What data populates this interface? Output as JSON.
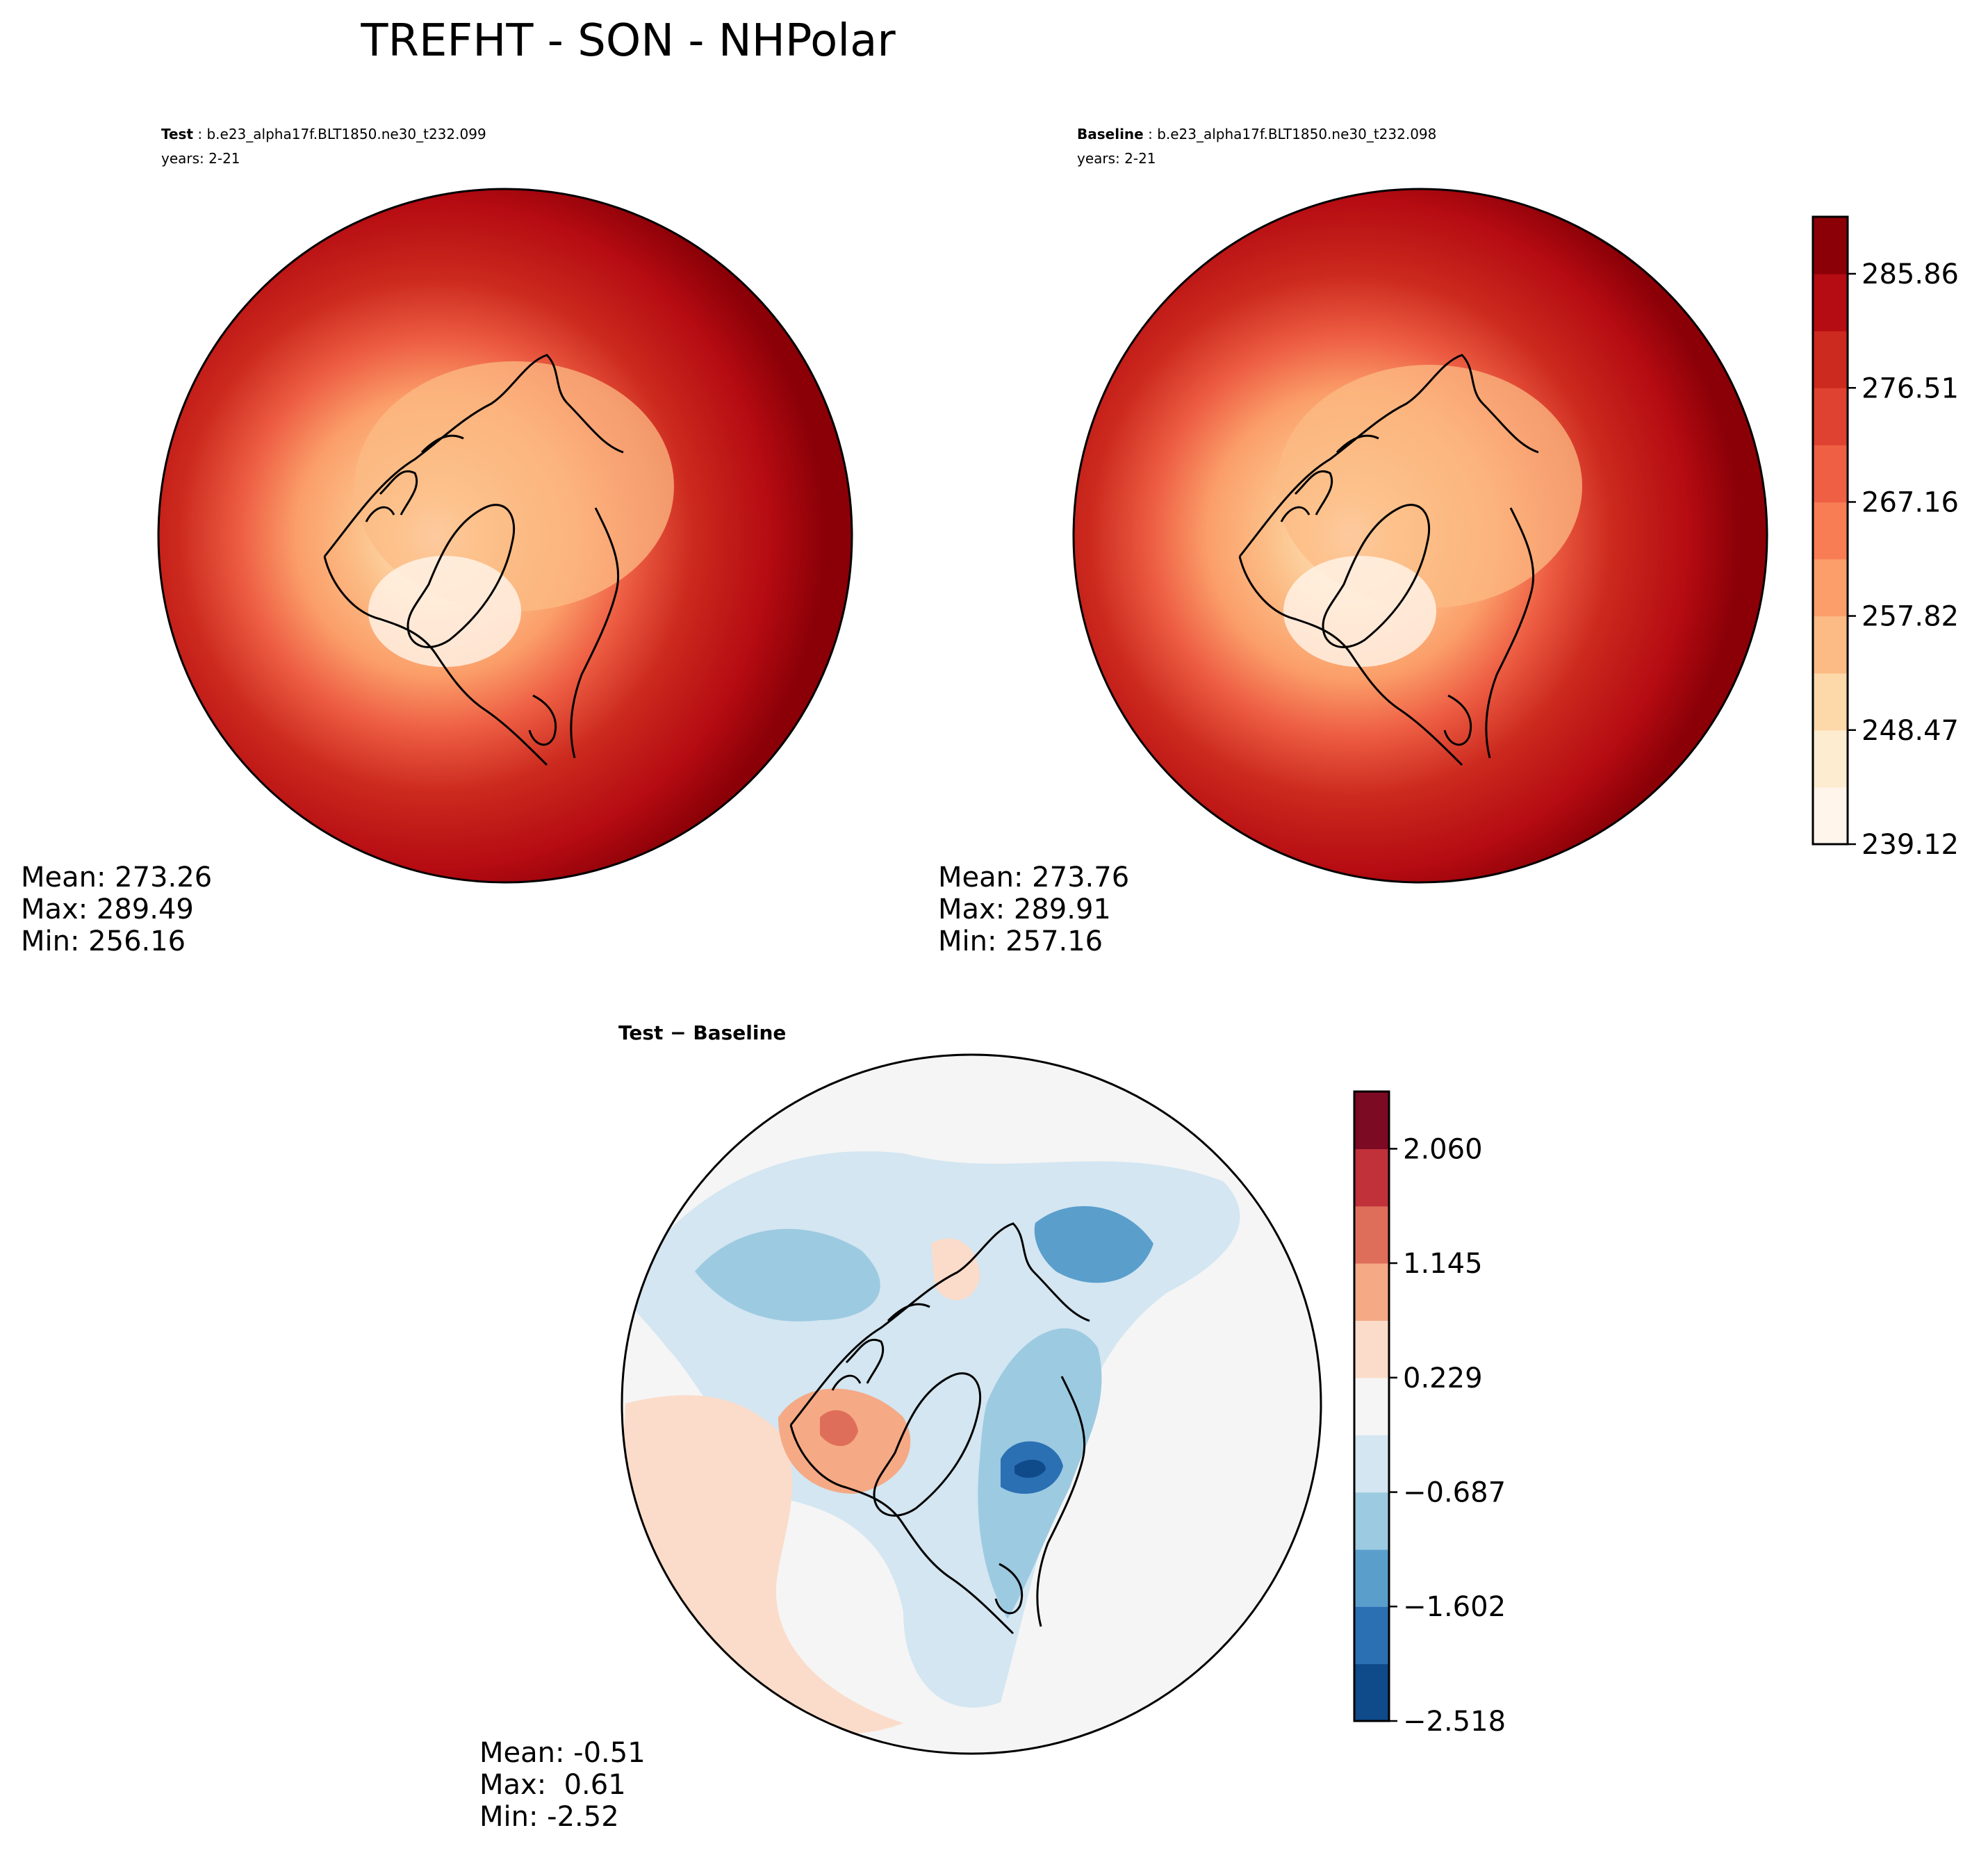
{
  "figure": {
    "title": "TREFHT - SON - NHPolar"
  },
  "chart_data": [
    {
      "type": "heatmap",
      "projection": "north-polar-stereographic",
      "panel_label_bold": "Test",
      "panel_case": "b.e23_alpha17f.BLT1850.ne30_t232.099",
      "panel_years": "years: 2-21",
      "stats": {
        "mean_label": "Mean: 273.26",
        "max_label": "Max: 289.49",
        "min_label": "Min: 256.16"
      },
      "mean": 273.26,
      "max": 289.49,
      "min": 256.16
    },
    {
      "type": "heatmap",
      "projection": "north-polar-stereographic",
      "panel_label_bold": "Baseline",
      "panel_case": "b.e23_alpha17f.BLT1850.ne30_t232.098",
      "panel_years": "years: 2-21",
      "stats": {
        "mean_label": "Mean: 273.76",
        "max_label": "Max: 289.91",
        "min_label": "Min: 257.16"
      },
      "mean": 273.76,
      "max": 289.91,
      "min": 257.16,
      "colorbar": {
        "levels": [
          239.12,
          243.795,
          248.47,
          253.145,
          257.82,
          262.49,
          267.16,
          271.835,
          276.51,
          281.185,
          285.86,
          290.53
        ],
        "tick_values": [
          239.12,
          248.47,
          257.82,
          267.16,
          276.51,
          285.86
        ],
        "tick_labels": [
          "239.12",
          "248.47",
          "257.82",
          "267.16",
          "276.51",
          "285.86"
        ],
        "colors": [
          "#fff5eb",
          "#feecd0",
          "#fdd8a8",
          "#fcbb84",
          "#fb9e69",
          "#f87c54",
          "#ee5f44",
          "#df4230",
          "#cc2a1e",
          "#b50b12",
          "#8b0007"
        ]
      }
    },
    {
      "type": "heatmap",
      "projection": "north-polar-stereographic",
      "panel_title": "Test − Baseline",
      "stats": {
        "mean_label": "Mean: -0.51",
        "max_label": "Max:  0.61",
        "min_label": "Min: -2.52"
      },
      "mean": -0.51,
      "max": 0.61,
      "min": -2.52,
      "colorbar": {
        "levels": [
          -2.518,
          -2.06,
          -1.602,
          -1.145,
          -0.687,
          -0.229,
          0.229,
          0.687,
          1.145,
          1.602,
          2.06,
          2.518
        ],
        "tick_values": [
          -2.518,
          -1.602,
          -0.687,
          0.229,
          1.145,
          2.06
        ],
        "tick_labels": [
          "−2.518",
          "−1.602",
          "−0.687",
          "0.229",
          "1.145",
          "2.060"
        ],
        "colors": [
          "#0f4a8a",
          "#2b70b3",
          "#5a9ecc",
          "#9ccae1",
          "#d3e6f1",
          "#f5f5f5",
          "#fbdcca",
          "#f5a985",
          "#de6e5a",
          "#c0313a",
          "#7c0a22"
        ]
      }
    }
  ]
}
